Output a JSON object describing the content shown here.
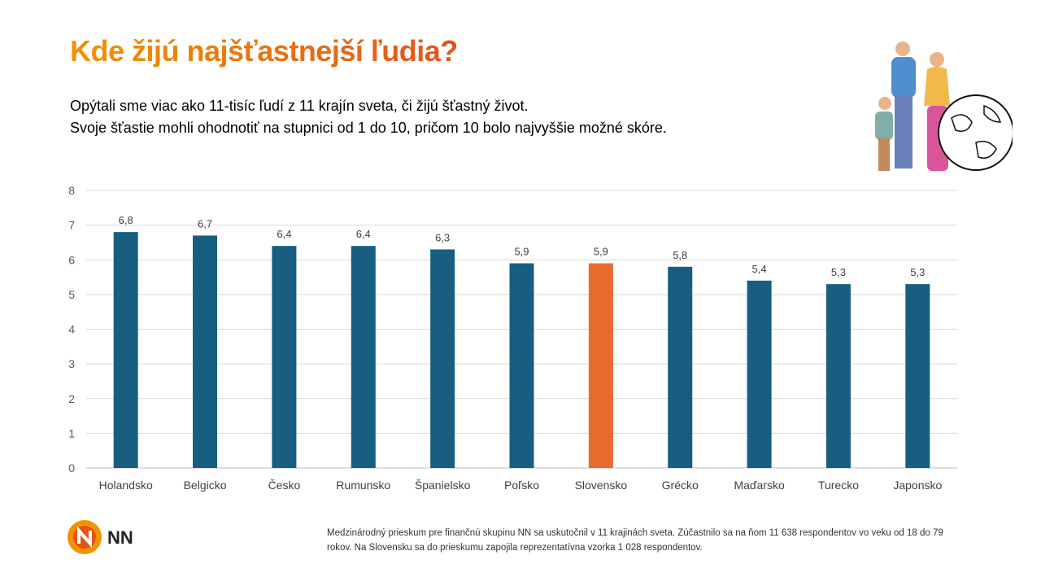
{
  "title": "Kde žijú najšťastnejší ľudia?",
  "subtitle_lines": [
    "Opýtali sme viac ako 11-tisíc ľudí z 11 krajín sveta, či žijú šťastný život.",
    "Svoje šťastie mohli ohodnotiť na stupnici od 1 do 10, pričom 10 bolo najvyššie možné skóre."
  ],
  "footnote": "Medzinárodný prieskum pre finančnú skupinu NN sa uskutočnil v 11 krajinách sveta. Zúčastnilo sa na ňom 11 638 respondentov vo veku od 18 do 79 rokov. Na Slovensku sa do prieskumu zapojila reprezentatívna vzorka 1 028 respondentov.",
  "logo": {
    "text": "NN",
    "icon": "nn-logo-icon"
  },
  "illustration": {
    "icon": "family-globe-illustration"
  },
  "colors": {
    "bar": "#175e80",
    "highlight": "#e96a2d",
    "title": "#ee7f00"
  },
  "chart_data": {
    "type": "bar",
    "categories": [
      "Holandsko",
      "Belgicko",
      "Česko",
      "Rumunsko",
      "Španielsko",
      "Poľsko",
      "Slovensko",
      "Grécko",
      "Maďarsko",
      "Turecko",
      "Japonsko"
    ],
    "values": [
      6.8,
      6.7,
      6.4,
      6.4,
      6.3,
      5.9,
      5.9,
      5.8,
      5.4,
      5.3,
      5.3
    ],
    "data_labels": [
      "6,8",
      "6,7",
      "6,4",
      "6,4",
      "6,3",
      "5,9",
      "5,9",
      "5,8",
      "5,4",
      "5,3",
      "5,3"
    ],
    "highlight": "Slovensko",
    "ylim": [
      0,
      8
    ],
    "yticks": [
      "0",
      "1",
      "2",
      "3",
      "4",
      "5",
      "6",
      "7",
      "8"
    ],
    "grid": true,
    "title": "",
    "xlabel": "",
    "ylabel": ""
  }
}
